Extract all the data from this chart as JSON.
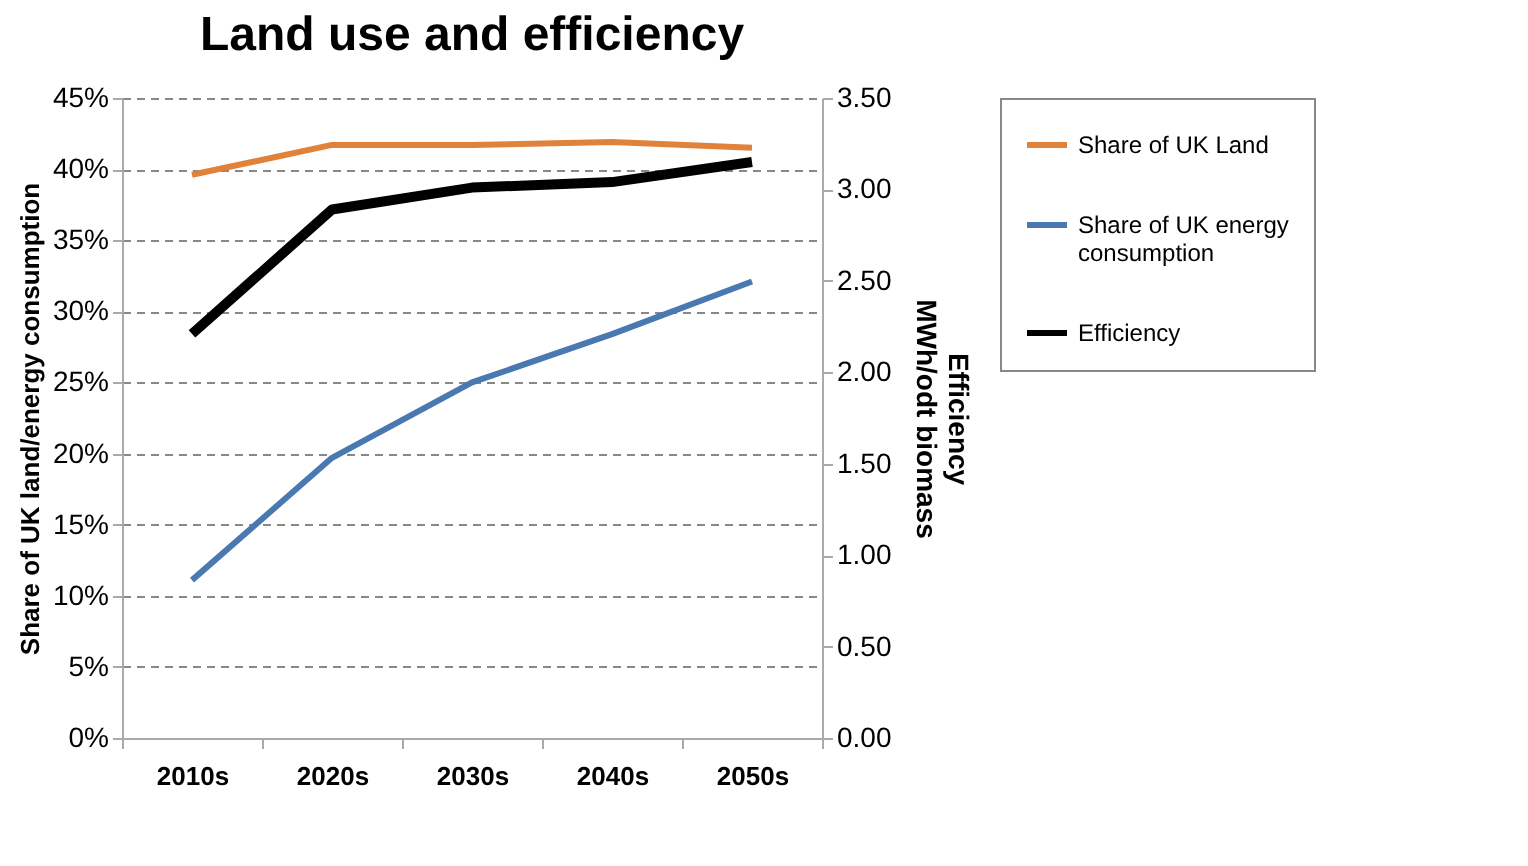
{
  "chart_data": {
    "type": "line",
    "title": "Land use and efficiency",
    "ylabel": "Share of UK land/energy consumption",
    "y2label": "Efficiency\nMWh/odt biomass",
    "categories": [
      "2010s",
      "2020s",
      "2030s",
      "2040s",
      "2050s"
    ],
    "series": [
      {
        "name": "Share of UK Land",
        "color": "#e0823c",
        "values": [
          39.6,
          41.7,
          41.7,
          41.9,
          41.5
        ]
      },
      {
        "name": "Share of UK energy consumption",
        "color": "#4a78b0",
        "values": [
          11.1,
          19.7,
          25.0,
          28.4,
          32.1
        ]
      },
      {
        "name": "Efficiency",
        "color": "#000000",
        "axis": "y2",
        "values": [
          2.21,
          2.89,
          3.01,
          3.04,
          3.15
        ]
      }
    ],
    "ylim": [
      0,
      45
    ],
    "yticks": [
      {
        "value": 0,
        "label": "0%"
      },
      {
        "value": 5,
        "label": "5%"
      },
      {
        "value": 10,
        "label": "10%"
      },
      {
        "value": 15,
        "label": "15%"
      },
      {
        "value": 20,
        "label": "20%"
      },
      {
        "value": 25,
        "label": "25%"
      },
      {
        "value": 30,
        "label": "30%"
      },
      {
        "value": 35,
        "label": "35%"
      },
      {
        "value": 40,
        "label": "40%"
      },
      {
        "value": 45,
        "label": "45%"
      }
    ],
    "y2lim": [
      0,
      3.5
    ],
    "y2ticks": [
      {
        "value": 0,
        "label": "0.00"
      },
      {
        "value": 0.5,
        "label": "0.50"
      },
      {
        "value": 1,
        "label": "1.00"
      },
      {
        "value": 1.5,
        "label": "1.50"
      },
      {
        "value": 2,
        "label": "2.00"
      },
      {
        "value": 2.5,
        "label": "2.50"
      },
      {
        "value": 3,
        "label": "3.00"
      },
      {
        "value": 3.5,
        "label": "3.50"
      }
    ],
    "grid": "y",
    "legend": "right",
    "marker": "none",
    "line_style": "solid"
  }
}
